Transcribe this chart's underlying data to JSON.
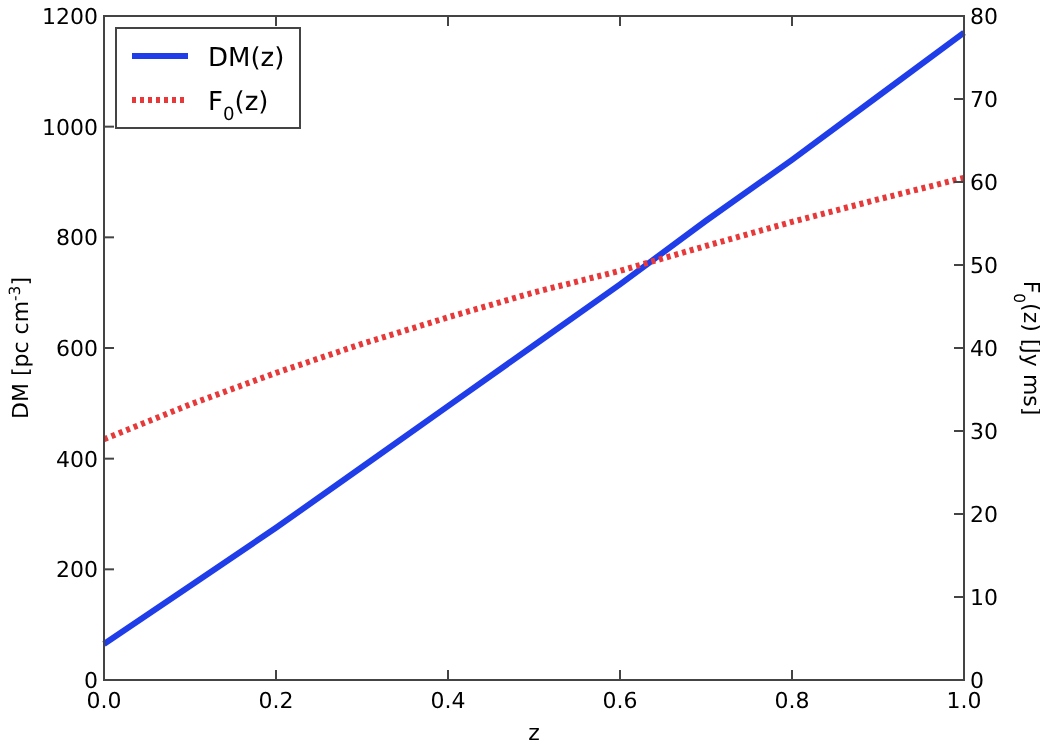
{
  "chart_data": {
    "type": "line",
    "xlabel": "z",
    "ylabel": "DM [pc cm$^{-3}$]",
    "y2label": "F$_{0}$(z) [Jy ms]",
    "x": [
      0,
      0.1,
      0.2,
      0.3,
      0.4,
      0.5,
      0.6,
      0.7,
      0.8,
      0.9,
      1.0
    ],
    "xlim": [
      0,
      1
    ],
    "xticks": [
      {
        "value": 0,
        "label": "0.0"
      },
      {
        "value": 0.2,
        "label": "0.2"
      },
      {
        "value": 0.4,
        "label": "0.4"
      },
      {
        "value": 0.6,
        "label": "0.6"
      },
      {
        "value": 0.8,
        "label": "0.8"
      },
      {
        "value": 1,
        "label": "1.0"
      }
    ],
    "ylim": [
      0,
      1200
    ],
    "yticks": [
      0,
      200,
      400,
      600,
      800,
      1000,
      1200
    ],
    "y2lim": [
      0,
      80
    ],
    "y2ticks": [
      0,
      10,
      20,
      30,
      40,
      50,
      60,
      70,
      80
    ],
    "legend": "top left",
    "grid": false,
    "series": [
      {
        "name": "DM(z)",
        "color": "#1f3de8",
        "line_style": "solid",
        "values": [
          65,
          170,
          275,
          385,
          495,
          605,
          715,
          830,
          940,
          1055,
          1170
        ]
      },
      {
        "name": "F$_{0}$(z)",
        "color": "#e8393a",
        "line_style": "dotted",
        "axis": "y2",
        "values": [
          29,
          33.2,
          37,
          40.5,
          43.7,
          46.7,
          49.3,
          52.3,
          55.2,
          57.9,
          60.5
        ]
      }
    ]
  }
}
